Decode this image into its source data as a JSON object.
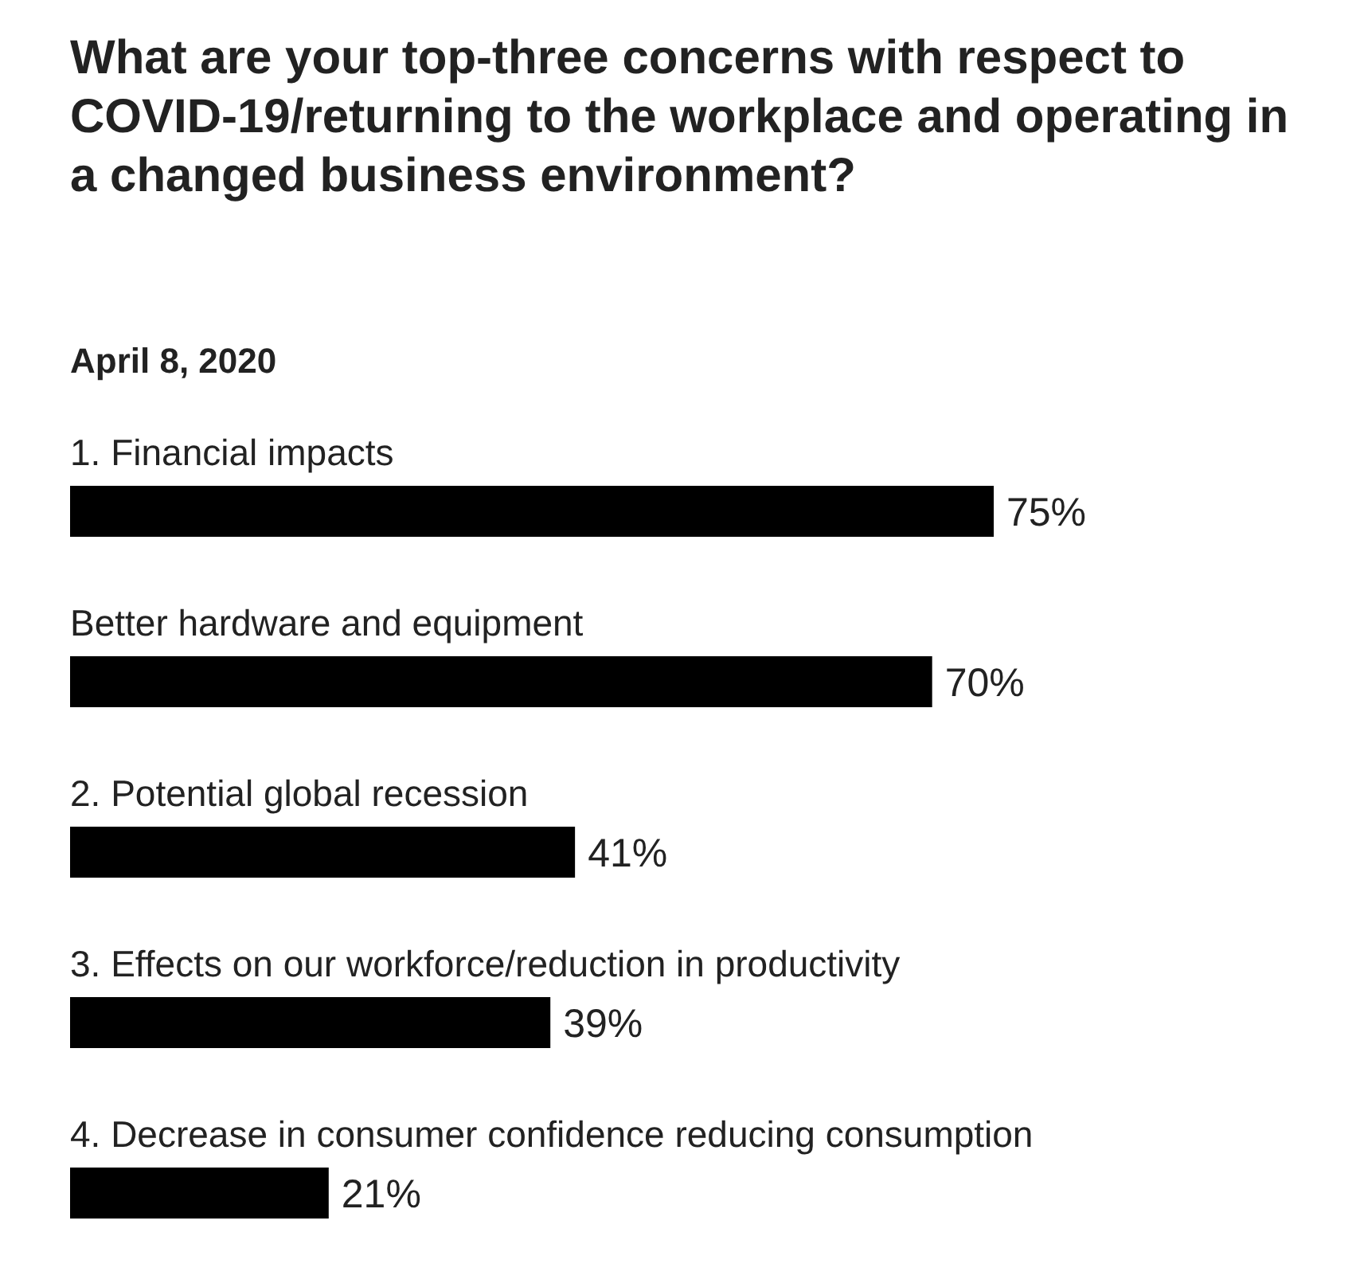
{
  "chart_data": {
    "type": "bar",
    "orientation": "horizontal",
    "title": "What are your top-three concerns with respect to COVID-19/returning to the workplace and operating in a changed business environment?",
    "subtitle": "April 8, 2020",
    "categories": [
      "1. Financial impacts",
      "Better hardware and equipment",
      "2. Potential global recession",
      "3. Effects on our workforce/reduction in productivity",
      "4. Decrease in consumer confidence reducing consumption"
    ],
    "values": [
      75,
      70,
      41,
      39,
      21
    ],
    "value_labels": [
      "75%",
      "70%",
      "41%",
      "39%",
      "21%"
    ],
    "color": "#000000"
  }
}
